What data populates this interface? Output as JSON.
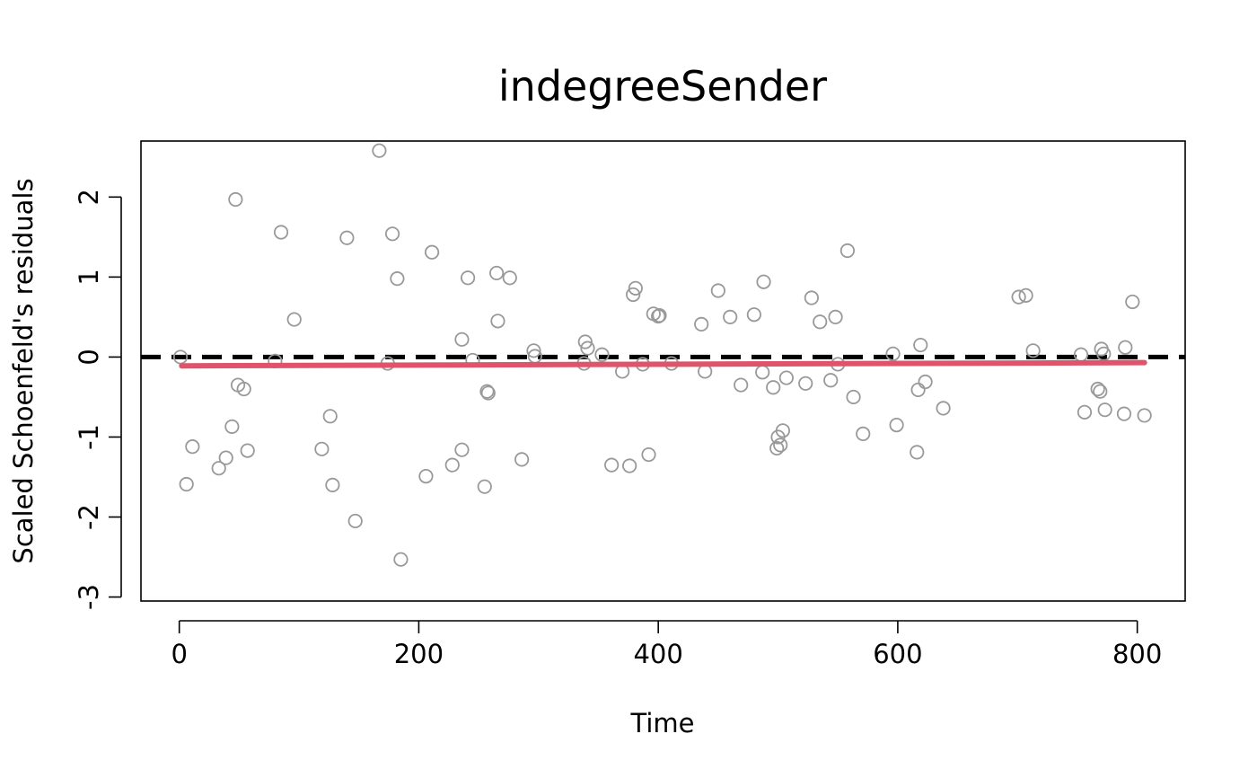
{
  "chart_data": {
    "type": "scatter",
    "title": "indegreeSender",
    "xlabel": "Time",
    "ylabel": "Scaled Schoenfeld's residuals",
    "xlim": [
      -32,
      840
    ],
    "ylim": [
      -3.05,
      2.7
    ],
    "x_ticks": [
      0,
      200,
      400,
      600,
      800
    ],
    "y_ticks": [
      -3,
      -2,
      -1,
      0,
      1,
      2
    ],
    "grid": false,
    "legend": "none",
    "colors": {
      "points": "#999999",
      "trend": "#DF536B",
      "reference": "#000000"
    },
    "reference_line": {
      "y": 0,
      "style": "dashed"
    },
    "trend_line": {
      "x": [
        2,
        806
      ],
      "y": [
        -0.11,
        -0.07
      ]
    },
    "points": [
      [
        1,
        0.0
      ],
      [
        6,
        -1.59
      ],
      [
        11,
        -1.12
      ],
      [
        33,
        -1.39
      ],
      [
        39,
        -1.26
      ],
      [
        44,
        -0.87
      ],
      [
        47,
        1.97
      ],
      [
        49,
        -0.35
      ],
      [
        54,
        -0.4
      ],
      [
        57,
        -1.17
      ],
      [
        80,
        -0.05
      ],
      [
        85,
        1.56
      ],
      [
        96,
        0.47
      ],
      [
        119,
        -1.15
      ],
      [
        126,
        -0.74
      ],
      [
        128,
        -1.6
      ],
      [
        140,
        1.49
      ],
      [
        147,
        -2.05
      ],
      [
        167,
        2.58
      ],
      [
        174,
        -0.08
      ],
      [
        178,
        1.54
      ],
      [
        182,
        0.98
      ],
      [
        185,
        -2.53
      ],
      [
        206,
        -1.49
      ],
      [
        211,
        1.31
      ],
      [
        228,
        -1.35
      ],
      [
        236,
        -1.16
      ],
      [
        236,
        0.22
      ],
      [
        241,
        0.99
      ],
      [
        245,
        -0.04
      ],
      [
        255,
        -1.62
      ],
      [
        257,
        -0.43
      ],
      [
        258,
        -0.45
      ],
      [
        265,
        1.05
      ],
      [
        266,
        0.45
      ],
      [
        276,
        0.99
      ],
      [
        286,
        -1.28
      ],
      [
        296,
        0.08
      ],
      [
        297,
        0.01
      ],
      [
        338,
        -0.08
      ],
      [
        339,
        0.19
      ],
      [
        341,
        0.11
      ],
      [
        353,
        0.03
      ],
      [
        361,
        -1.35
      ],
      [
        370,
        -0.18
      ],
      [
        376,
        -1.36
      ],
      [
        379,
        0.78
      ],
      [
        381,
        0.86
      ],
      [
        387,
        -0.09
      ],
      [
        392,
        -1.22
      ],
      [
        396,
        0.54
      ],
      [
        400,
        0.51
      ],
      [
        401,
        0.52
      ],
      [
        411,
        -0.08
      ],
      [
        436,
        0.41
      ],
      [
        439,
        -0.18
      ],
      [
        450,
        0.83
      ],
      [
        460,
        0.5
      ],
      [
        469,
        -0.35
      ],
      [
        480,
        0.53
      ],
      [
        487,
        -0.19
      ],
      [
        488,
        0.94
      ],
      [
        496,
        -0.38
      ],
      [
        499,
        -1.14
      ],
      [
        500,
        -1.0
      ],
      [
        502,
        -1.1
      ],
      [
        504,
        -0.92
      ],
      [
        507,
        -0.26
      ],
      [
        523,
        -0.33
      ],
      [
        528,
        0.74
      ],
      [
        535,
        0.44
      ],
      [
        544,
        -0.29
      ],
      [
        548,
        0.5
      ],
      [
        550,
        -0.09
      ],
      [
        558,
        1.33
      ],
      [
        563,
        -0.5
      ],
      [
        571,
        -0.96
      ],
      [
        596,
        0.04
      ],
      [
        599,
        -0.85
      ],
      [
        616,
        -1.19
      ],
      [
        617,
        -0.41
      ],
      [
        619,
        0.15
      ],
      [
        623,
        -0.31
      ],
      [
        638,
        -0.64
      ],
      [
        701,
        0.75
      ],
      [
        707,
        0.77
      ],
      [
        713,
        0.08
      ],
      [
        753,
        0.03
      ],
      [
        756,
        -0.69
      ],
      [
        767,
        -0.4
      ],
      [
        769,
        -0.43
      ],
      [
        770,
        0.1
      ],
      [
        772,
        0.04
      ],
      [
        773,
        -0.66
      ],
      [
        789,
        -0.71
      ],
      [
        790,
        0.12
      ],
      [
        796,
        0.69
      ],
      [
        806,
        -0.73
      ]
    ]
  }
}
